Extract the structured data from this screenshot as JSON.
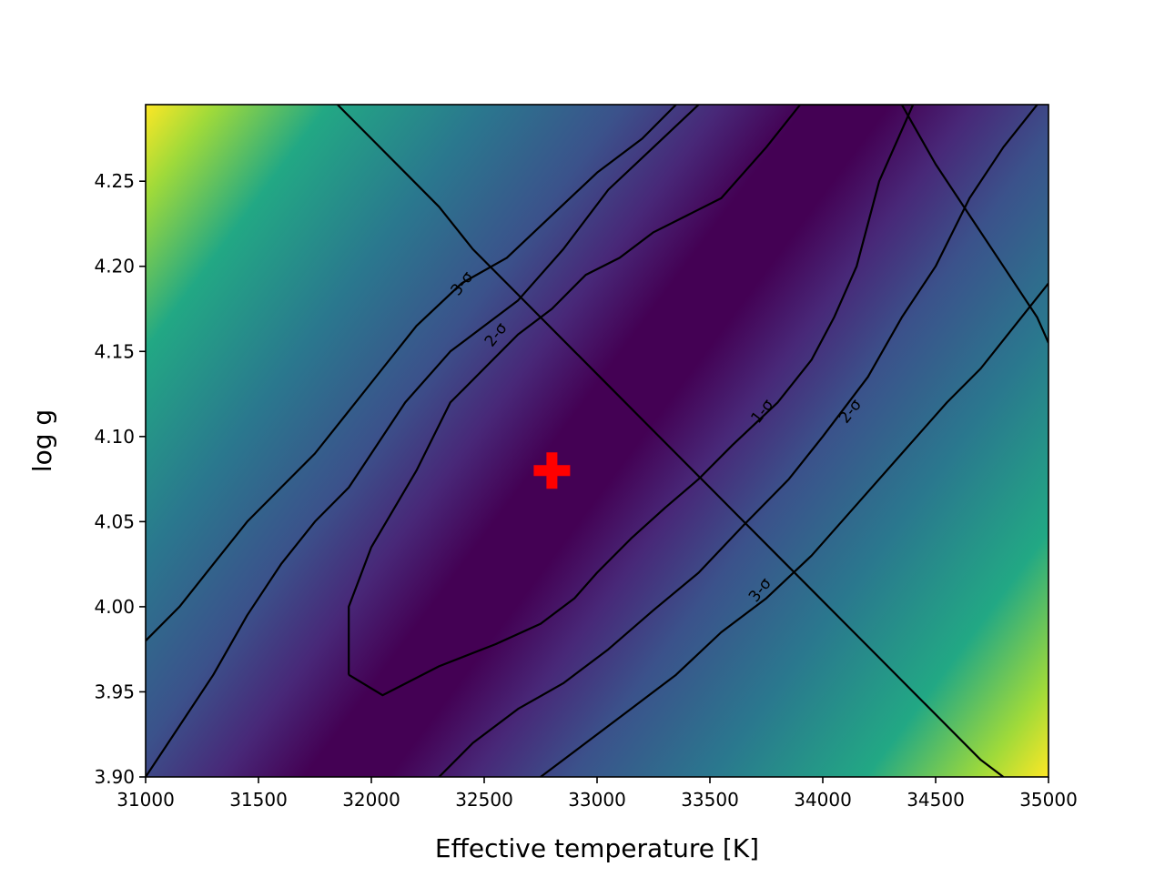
{
  "chart_data": {
    "type": "heatmap",
    "title": "",
    "xlabel": "Effective temperature [K]",
    "ylabel": "log g",
    "xlim": [
      31000,
      35000
    ],
    "ylim": [
      3.9,
      4.295
    ],
    "x_ticks": [
      "31000",
      "31500",
      "32000",
      "32500",
      "33000",
      "33500",
      "34000",
      "34500",
      "35000"
    ],
    "x_tick_values": [
      31000,
      31500,
      32000,
      32500,
      33000,
      33500,
      34000,
      34500,
      35000
    ],
    "y_ticks": [
      "3.90",
      "3.95",
      "4.00",
      "4.05",
      "4.10",
      "4.15",
      "4.20",
      "4.25"
    ],
    "y_tick_values": [
      3.9,
      3.95,
      4.0,
      4.05,
      4.1,
      4.15,
      4.2,
      4.25
    ],
    "colormap": "viridis",
    "grid": false,
    "best_fit": {
      "x": 32800,
      "y": 4.08,
      "marker": "plus",
      "color": "#ff0000"
    },
    "contours": [
      {
        "label": "1-σ",
        "label_at": {
          "x": 33730,
          "y": 4.115
        },
        "points": [
          [
            31900,
            3.96
          ],
          [
            32050,
            3.948
          ],
          [
            32300,
            3.965
          ],
          [
            32550,
            3.978
          ],
          [
            32750,
            3.99
          ],
          [
            32900,
            4.005
          ],
          [
            33000,
            4.02
          ],
          [
            33150,
            4.04
          ],
          [
            33300,
            4.058
          ],
          [
            33450,
            4.075
          ],
          [
            33600,
            4.095
          ],
          [
            33800,
            4.12
          ],
          [
            33950,
            4.145
          ],
          [
            34050,
            4.17
          ],
          [
            34150,
            4.2
          ],
          [
            34250,
            4.25
          ],
          [
            34400,
            4.295
          ],
          [
            33900,
            4.295
          ],
          [
            33750,
            4.27
          ],
          [
            33550,
            4.24
          ],
          [
            33400,
            4.23
          ],
          [
            33250,
            4.22
          ],
          [
            33100,
            4.205
          ],
          [
            32950,
            4.195
          ],
          [
            32800,
            4.175
          ],
          [
            32650,
            4.16
          ],
          [
            32500,
            4.14
          ],
          [
            32350,
            4.12
          ],
          [
            32200,
            4.08
          ],
          [
            32000,
            4.035
          ],
          [
            31900,
            4.0
          ],
          [
            31900,
            3.96
          ]
        ]
      },
      {
        "label": "2-σ",
        "label_at": {
          "x": 32550,
          "y": 4.16
        },
        "points": [
          [
            31000,
            3.9
          ],
          [
            31150,
            3.93
          ],
          [
            31300,
            3.96
          ],
          [
            31450,
            3.995
          ],
          [
            31600,
            4.025
          ],
          [
            31750,
            4.05
          ],
          [
            31900,
            4.07
          ],
          [
            32000,
            4.09
          ],
          [
            32150,
            4.12
          ],
          [
            32350,
            4.15
          ],
          [
            32500,
            4.165
          ],
          [
            32650,
            4.18
          ],
          [
            32850,
            4.21
          ],
          [
            33050,
            4.245
          ],
          [
            33250,
            4.27
          ],
          [
            33450,
            4.295
          ]
        ]
      },
      {
        "label": "2-σ",
        "label_at": {
          "x": 34120,
          "y": 4.115
        },
        "points": [
          [
            32300,
            3.9
          ],
          [
            32450,
            3.92
          ],
          [
            32650,
            3.94
          ],
          [
            32850,
            3.955
          ],
          [
            33050,
            3.975
          ],
          [
            33250,
            3.998
          ],
          [
            33450,
            4.02
          ],
          [
            33650,
            4.048
          ],
          [
            33850,
            4.075
          ],
          [
            34000,
            4.1
          ],
          [
            34200,
            4.135
          ],
          [
            34350,
            4.17
          ],
          [
            34500,
            4.2
          ],
          [
            34650,
            4.24
          ],
          [
            34800,
            4.27
          ],
          [
            34950,
            4.295
          ]
        ]
      },
      {
        "label": "3-σ",
        "label_at": {
          "x": 32400,
          "y": 4.19
        },
        "points": [
          [
            31000,
            3.98
          ],
          [
            31150,
            4.0
          ],
          [
            31300,
            4.025
          ],
          [
            31450,
            4.05
          ],
          [
            31600,
            4.07
          ],
          [
            31750,
            4.09
          ],
          [
            31900,
            4.115
          ],
          [
            32050,
            4.14
          ],
          [
            32200,
            4.165
          ],
          [
            32400,
            4.19
          ],
          [
            32600,
            4.205
          ],
          [
            32800,
            4.23
          ],
          [
            33000,
            4.255
          ],
          [
            33200,
            4.275
          ],
          [
            33350,
            4.295
          ]
        ]
      },
      {
        "label": "3-σ",
        "label_at": {
          "x": 33720,
          "y": 4.01
        },
        "points": [
          [
            32750,
            3.9
          ],
          [
            32950,
            3.92
          ],
          [
            33150,
            3.94
          ],
          [
            33350,
            3.96
          ],
          [
            33550,
            3.985
          ],
          [
            33750,
            4.005
          ],
          [
            33950,
            4.03
          ],
          [
            34150,
            4.06
          ],
          [
            34350,
            4.09
          ],
          [
            34550,
            4.12
          ],
          [
            34700,
            4.14
          ],
          [
            34850,
            4.165
          ],
          [
            35000,
            4.19
          ]
        ]
      },
      {
        "label": "",
        "label_at": null,
        "points": [
          [
            34350,
            4.295
          ],
          [
            34500,
            4.26
          ],
          [
            34650,
            4.23
          ],
          [
            34800,
            4.2
          ],
          [
            34950,
            4.17
          ],
          [
            35000,
            4.155
          ]
        ]
      },
      {
        "label": "",
        "label_at": null,
        "points": [
          [
            31850,
            4.295
          ],
          [
            32000,
            4.275
          ],
          [
            32150,
            4.255
          ],
          [
            32300,
            4.235
          ],
          [
            32450,
            4.21
          ],
          [
            32600,
            4.19
          ],
          [
            32750,
            4.17
          ],
          [
            32900,
            4.15
          ],
          [
            33050,
            4.13
          ],
          [
            33200,
            4.11
          ],
          [
            33350,
            4.09
          ],
          [
            33500,
            4.07
          ],
          [
            33650,
            4.05
          ],
          [
            33800,
            4.03
          ],
          [
            33950,
            4.01
          ],
          [
            34100,
            3.99
          ],
          [
            34250,
            3.97
          ],
          [
            34400,
            3.95
          ],
          [
            34550,
            3.93
          ],
          [
            34700,
            3.91
          ],
          [
            34800,
            3.9
          ]
        ]
      }
    ]
  }
}
